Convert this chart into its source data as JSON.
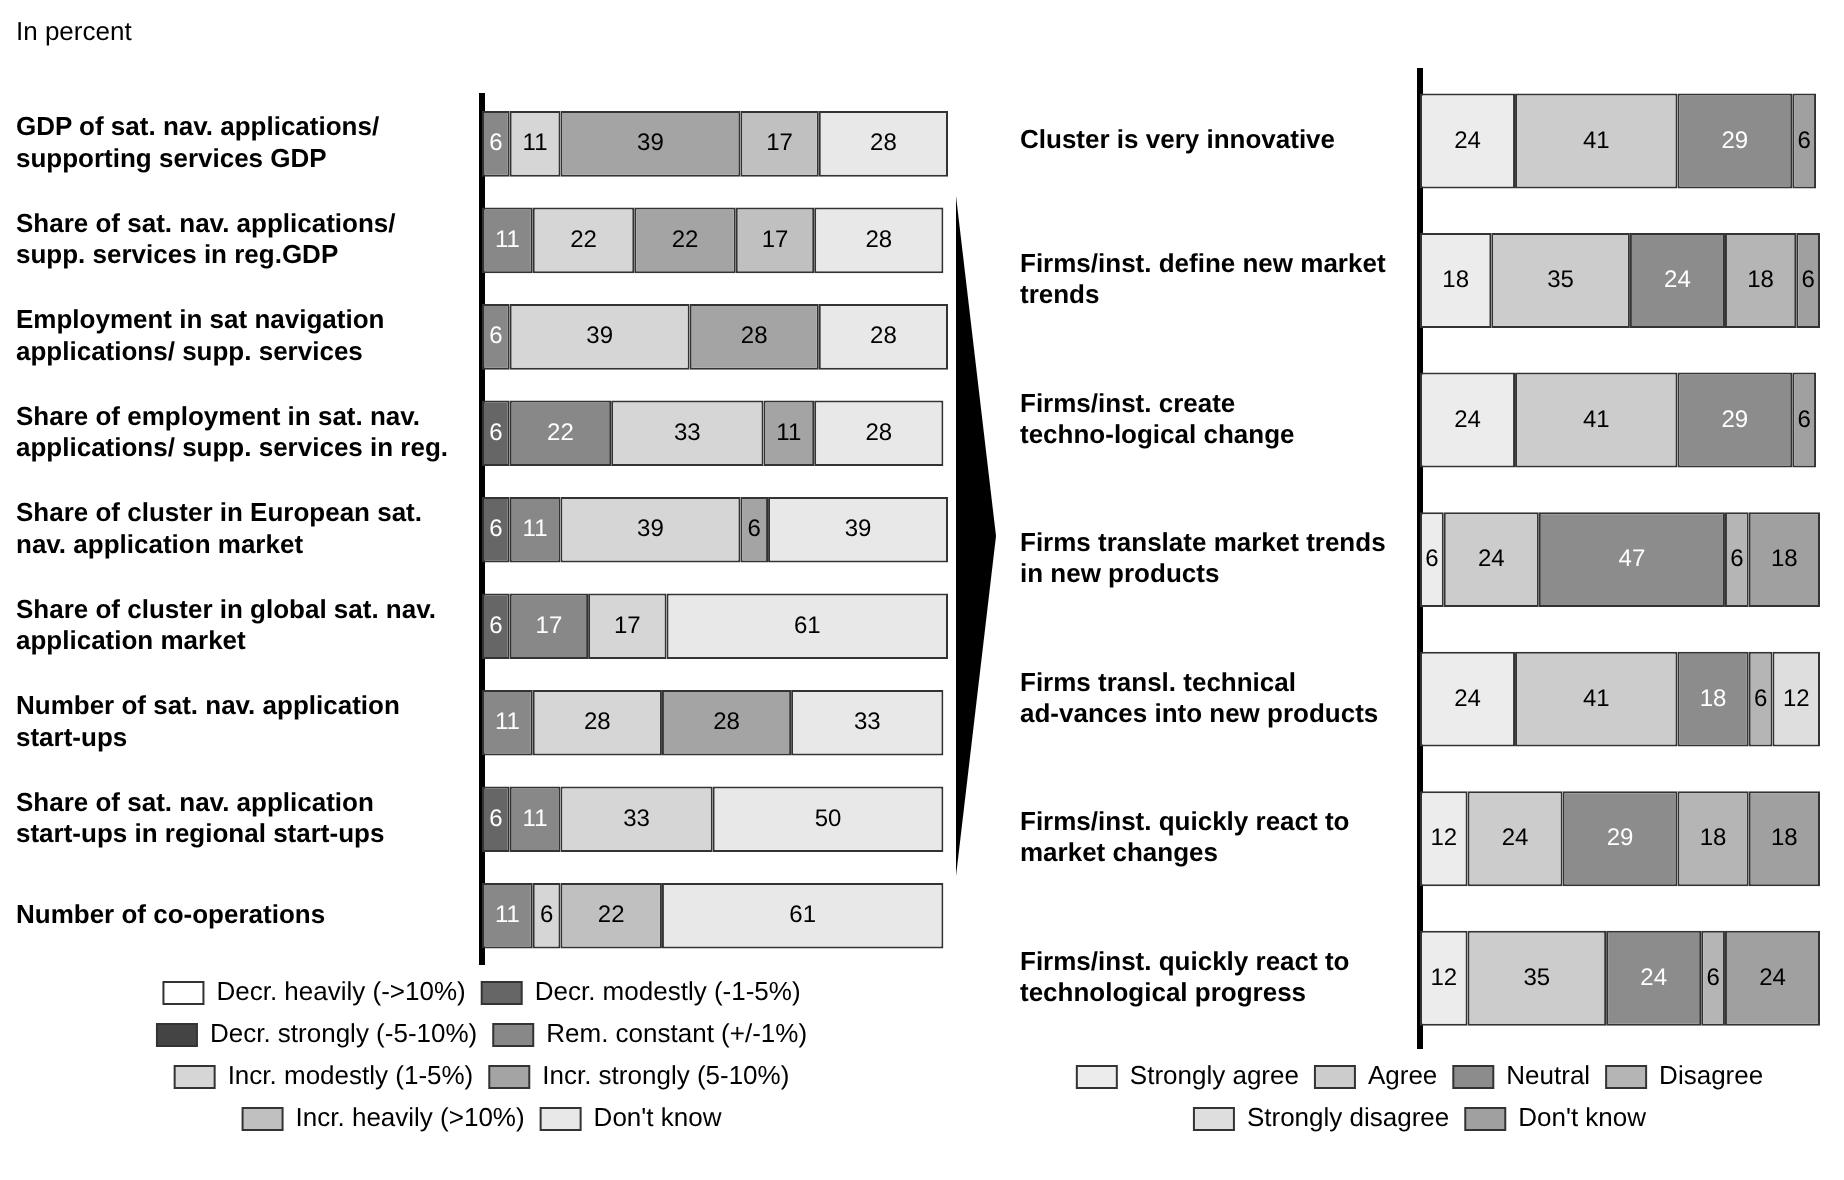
{
  "chart_data": [
    {
      "type": "bar",
      "orientation": "horizontal",
      "stacked": true,
      "data_labels": true,
      "legend": "bottom",
      "annotations": [
        "In percent"
      ],
      "categories": [
        "GDP of sat. nav. applications/ supporting services GDP",
        "Share of sat. nav. applications/ supp. services in reg.GDP",
        "Employment in sat navigation applications/ supp. services",
        "Share of employment in sat. nav. applications/ supp. services in reg.",
        "Share of cluster in European sat. nav. application market",
        "Share of cluster in global sat. nav. application market",
        "Number of sat. nav. application start-ups",
        "Share of sat. nav. application start-ups in regional start-ups",
        "Number of co-operations"
      ],
      "series": [
        {
          "name": "Decr. heavily (->10%)",
          "color": "#ffffff",
          "values": [
            null,
            null,
            null,
            null,
            null,
            null,
            null,
            null,
            null
          ]
        },
        {
          "name": "Decr. modestly (-1-5%)",
          "color": "#666666",
          "values": [
            null,
            null,
            null,
            6,
            6,
            6,
            null,
            6,
            null
          ]
        },
        {
          "name": "Decr. strongly (-5-10%)",
          "color": "#444444",
          "values": [
            null,
            null,
            null,
            null,
            null,
            null,
            null,
            null,
            null
          ]
        },
        {
          "name": "Rem. constant (+/-1%)",
          "color": "#888888",
          "values": [
            6,
            11,
            6,
            22,
            11,
            17,
            11,
            11,
            11
          ]
        },
        {
          "name": "Incr. modestly (1-5%)",
          "color": "#d6d6d6",
          "values": [
            11,
            22,
            39,
            33,
            39,
            17,
            28,
            33,
            6
          ]
        },
        {
          "name": "Incr. strongly (5-10%)",
          "color": "#a4a4a4",
          "values": [
            39,
            22,
            28,
            11,
            6,
            null,
            28,
            null,
            null
          ]
        },
        {
          "name": "Incr. heavily (>10%)",
          "color": "#c0c0c0",
          "values": [
            17,
            17,
            null,
            null,
            null,
            null,
            null,
            null,
            22
          ]
        },
        {
          "name": "Don't know",
          "color": "#e8e8e8",
          "values": [
            28,
            28,
            28,
            28,
            39,
            61,
            33,
            50,
            61
          ]
        }
      ]
    },
    {
      "type": "bar",
      "orientation": "horizontal",
      "stacked": true,
      "data_labels": true,
      "legend": "bottom",
      "categories": [
        "Cluster is very innovative",
        "Firms/inst. define new market trends",
        "Firms/inst. create techno-logical change",
        "Firms translate market trends in new products",
        "Firms transl. technical ad-vances into new products",
        "Firms/inst. quickly react to market changes",
        "Firms/inst. quickly react to technological progress"
      ],
      "series": [
        {
          "name": "Strongly agree",
          "color": "#ececec",
          "values": [
            24,
            18,
            24,
            6,
            24,
            12,
            12
          ]
        },
        {
          "name": "Agree",
          "color": "#cccccc",
          "values": [
            41,
            35,
            41,
            24,
            41,
            24,
            35
          ]
        },
        {
          "name": "Neutral",
          "color": "#8c8c8c",
          "values": [
            29,
            24,
            29,
            47,
            18,
            29,
            24
          ]
        },
        {
          "name": "Disagree",
          "color": "#b5b5b5",
          "values": [
            null,
            18,
            null,
            6,
            6,
            18,
            6
          ]
        },
        {
          "name": "Strongly disagree",
          "color": "#dedede",
          "values": [
            null,
            null,
            null,
            null,
            12,
            null,
            null
          ]
        },
        {
          "name": "Don't know",
          "color": "#a0a0a0",
          "values": [
            6,
            6,
            6,
            18,
            null,
            18,
            24
          ]
        }
      ]
    }
  ]
}
